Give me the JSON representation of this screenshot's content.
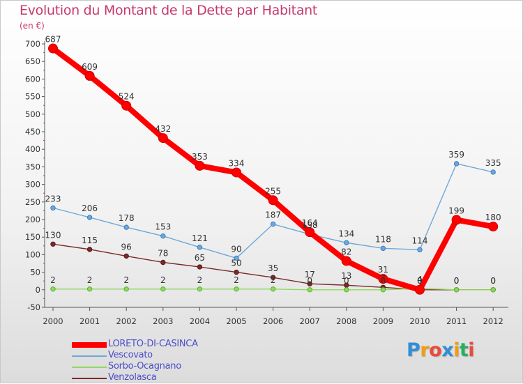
{
  "chart_data": {
    "type": "line",
    "title": "Evolution du Montant de la Dette par Habitant",
    "unit_label": "(en €)",
    "x": [
      "2000",
      "2001",
      "2002",
      "2003",
      "2004",
      "2005",
      "2006",
      "2007",
      "2008",
      "2009",
      "2010",
      "2011",
      "2012"
    ],
    "ylim": [
      -50,
      700
    ],
    "yticks": [
      -50,
      0,
      50,
      100,
      150,
      200,
      250,
      300,
      350,
      400,
      450,
      500,
      550,
      600,
      650,
      700
    ],
    "grid": false,
    "legend_position": "bottom-left",
    "series": [
      {
        "name": "LORETO-DI-CASINCA",
        "color": "#ff0000",
        "values": [
          687,
          609,
          524,
          432,
          353,
          334,
          255,
          164,
          82,
          31,
          0,
          199,
          180
        ]
      },
      {
        "name": "Vescovato",
        "color": "#6fa8d8",
        "values": [
          233,
          206,
          178,
          153,
          121,
          90,
          187,
          158,
          134,
          118,
          114,
          359,
          335
        ]
      },
      {
        "name": "Sorbo-Ocagnano",
        "color": "#8fd860",
        "values": [
          2,
          2,
          2,
          2,
          2,
          2,
          2,
          0,
          0,
          0,
          4,
          0,
          0
        ]
      },
      {
        "name": "Venzolasca",
        "color": "#7a2a2a",
        "values": [
          130,
          115,
          96,
          78,
          65,
          50,
          35,
          17,
          13,
          7,
          0,
          0,
          0
        ]
      }
    ]
  },
  "brand": {
    "letters": [
      "P",
      "r",
      "o",
      "x",
      "i",
      "t",
      "i"
    ],
    "colors": [
      "#2f8fd8",
      "#f39c12",
      "#e74c3c",
      "#2f8fd8",
      "#f39c12",
      "#27ae60",
      "#e74c3c"
    ]
  }
}
